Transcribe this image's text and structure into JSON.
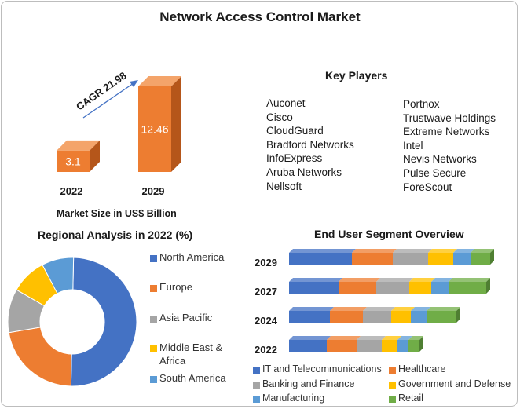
{
  "page": {
    "title": "Network Access Control Market"
  },
  "market_size": {
    "cagr_label": "CAGR 21.98",
    "caption": "Market Size in US$ Billion",
    "bar_color": "#ED7D31",
    "bar_side_color": "#B5561A"
  },
  "key_players": {
    "title": "Key Players",
    "col1": [
      "Auconet",
      "Cisco",
      "CloudGuard",
      "Bradford Networks",
      "InfoExpress",
      "Aruba Networks",
      "Nellsoft"
    ],
    "col2": [
      "Portnox",
      "Trustwave Holdings",
      "Extreme Networks",
      "Intel",
      "Nevis Networks",
      "Pulse Secure",
      "ForeScout"
    ]
  },
  "regional": {
    "title": "Regional Analysis in 2022 (%)"
  },
  "end_user": {
    "title": "End User Segment Overview"
  },
  "chart_data": [
    {
      "type": "bar",
      "categories": [
        "2022",
        "2029"
      ],
      "values": [
        3.1,
        12.46
      ],
      "data_labels": [
        "3.1",
        "12.46"
      ],
      "xlabel": "Market Size in US$ Billion",
      "annotation": "CAGR 21.98"
    },
    {
      "type": "pie",
      "title": "Regional Analysis in 2022 (%)",
      "donut": true,
      "labels": [
        "North America",
        "Europe",
        "Asia Pacific",
        "Middle East & Africa",
        "South America"
      ],
      "legend_lines": [
        [
          "North America"
        ],
        [
          "Europe"
        ],
        [
          "Asia Pacific"
        ],
        [
          "Middle East &",
          "Africa"
        ],
        [
          "South America"
        ]
      ],
      "values": [
        50,
        22,
        11,
        9,
        8
      ],
      "colors": [
        "#4472C4",
        "#ED7D31",
        "#A5A5A5",
        "#FFC000",
        "#5B9BD5"
      ],
      "legend": "right"
    },
    {
      "type": "bar",
      "orientation": "horizontal",
      "stacked": true,
      "title": "End User Segment Overview",
      "categories": [
        "2029",
        "2027",
        "2024",
        "2022"
      ],
      "series": [
        {
          "name": "IT and Telecommunications",
          "color": "#4472C4",
          "values": [
            80,
            63,
            52,
            48
          ]
        },
        {
          "name": "Healthcare",
          "color": "#ED7D31",
          "values": [
            52,
            48,
            42,
            38
          ]
        },
        {
          "name": "Banking and Finance",
          "color": "#A5A5A5",
          "values": [
            45,
            42,
            36,
            32
          ]
        },
        {
          "name": "Government and Defense",
          "color": "#FFC000",
          "values": [
            32,
            28,
            25,
            20
          ]
        },
        {
          "name": "Manufacturing",
          "color": "#5B9BD5",
          "values": [
            22,
            22,
            20,
            14
          ]
        },
        {
          "name": "Retail",
          "color": "#70AD47",
          "values": [
            25,
            48,
            38,
            14
          ]
        }
      ],
      "legend": "bottom"
    }
  ]
}
